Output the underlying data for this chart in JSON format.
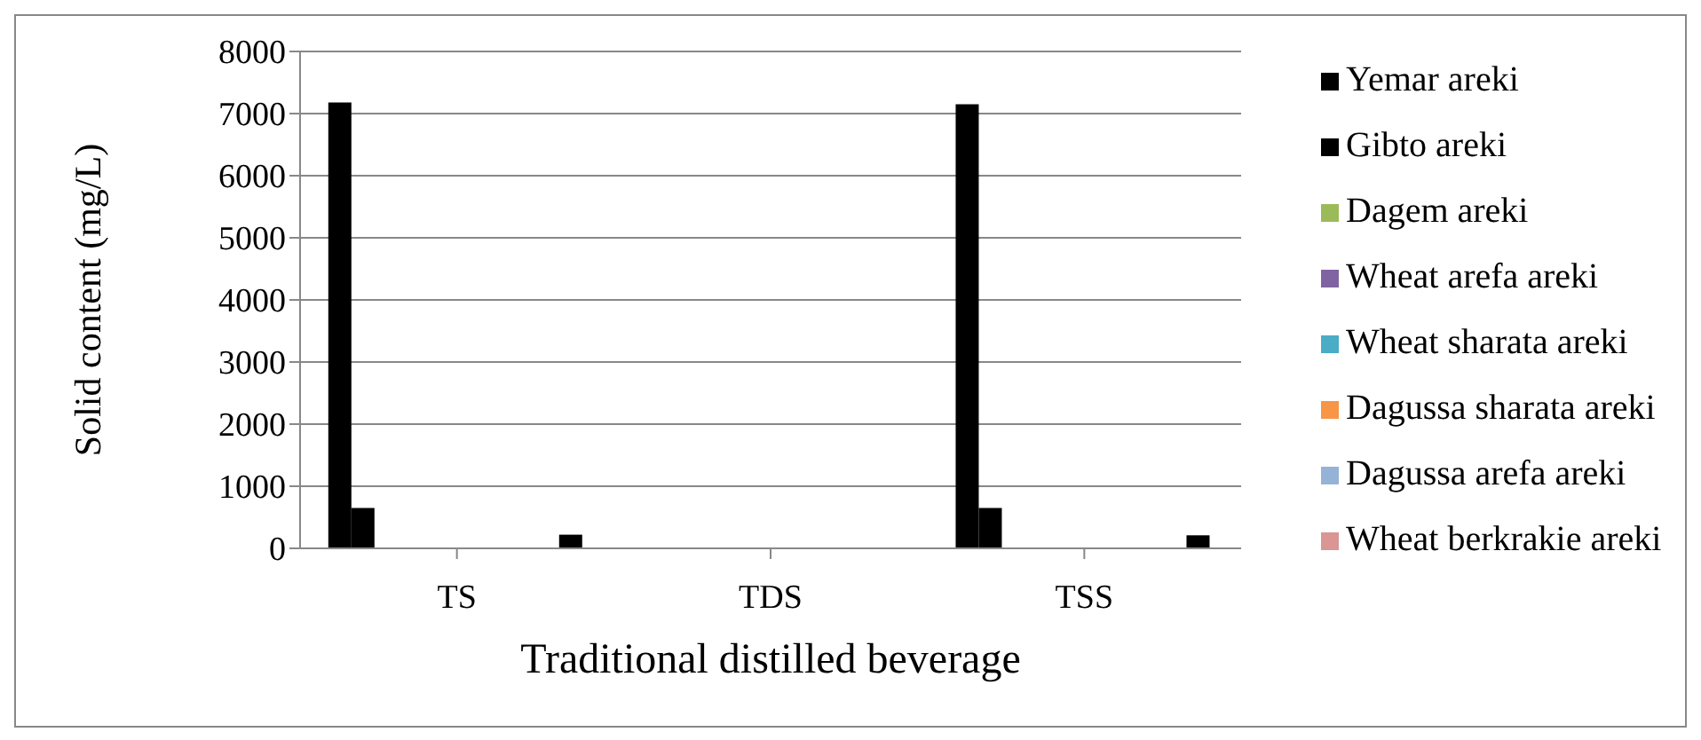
{
  "chart_data": {
    "type": "bar",
    "xlabel": "Traditional distilled beverage",
    "ylabel": "Solid content (mg/L)",
    "categories": [
      "TS",
      "TDS",
      "TSS"
    ],
    "series": [
      {
        "name": "Yemar areki",
        "color": "#000000",
        "values": [
          7180,
          null,
          7150
        ]
      },
      {
        "name": "Gibto areki",
        "color": "#000000",
        "values": [
          650,
          null,
          650
        ]
      },
      {
        "name": "Dagem areki",
        "color": "#9bbb59",
        "values": [
          0,
          0,
          0
        ]
      },
      {
        "name": "Wheat arefa areki",
        "color": "#8064a2",
        "values": [
          0,
          0,
          0
        ]
      },
      {
        "name": "Wheat sharata areki",
        "color": "#4bacc6",
        "values": [
          0,
          0,
          0
        ]
      },
      {
        "name": "Dagussa sharata areki",
        "color": "#f79646",
        "values": [
          0,
          0,
          0
        ]
      },
      {
        "name": "Dagussa arefa areki",
        "color": "#95b3d7",
        "values": [
          0,
          0,
          0
        ]
      },
      {
        "name": "Wheat berkrakie areki",
        "color": "#d99694",
        "values": [
          0,
          0,
          0
        ]
      },
      {
        "color": "#000000",
        "values": [
          0,
          0,
          0
        ]
      },
      {
        "color": "#000000",
        "values": [
          0,
          0,
          0
        ]
      },
      {
        "color": "#000000",
        "values": [
          220,
          10,
          210
        ]
      }
    ],
    "ylim": [
      0,
      8000
    ],
    "yticks": [
      0,
      1000,
      2000,
      3000,
      4000,
      5000,
      6000,
      7000,
      8000
    ],
    "grid": "y",
    "legend": "right"
  }
}
